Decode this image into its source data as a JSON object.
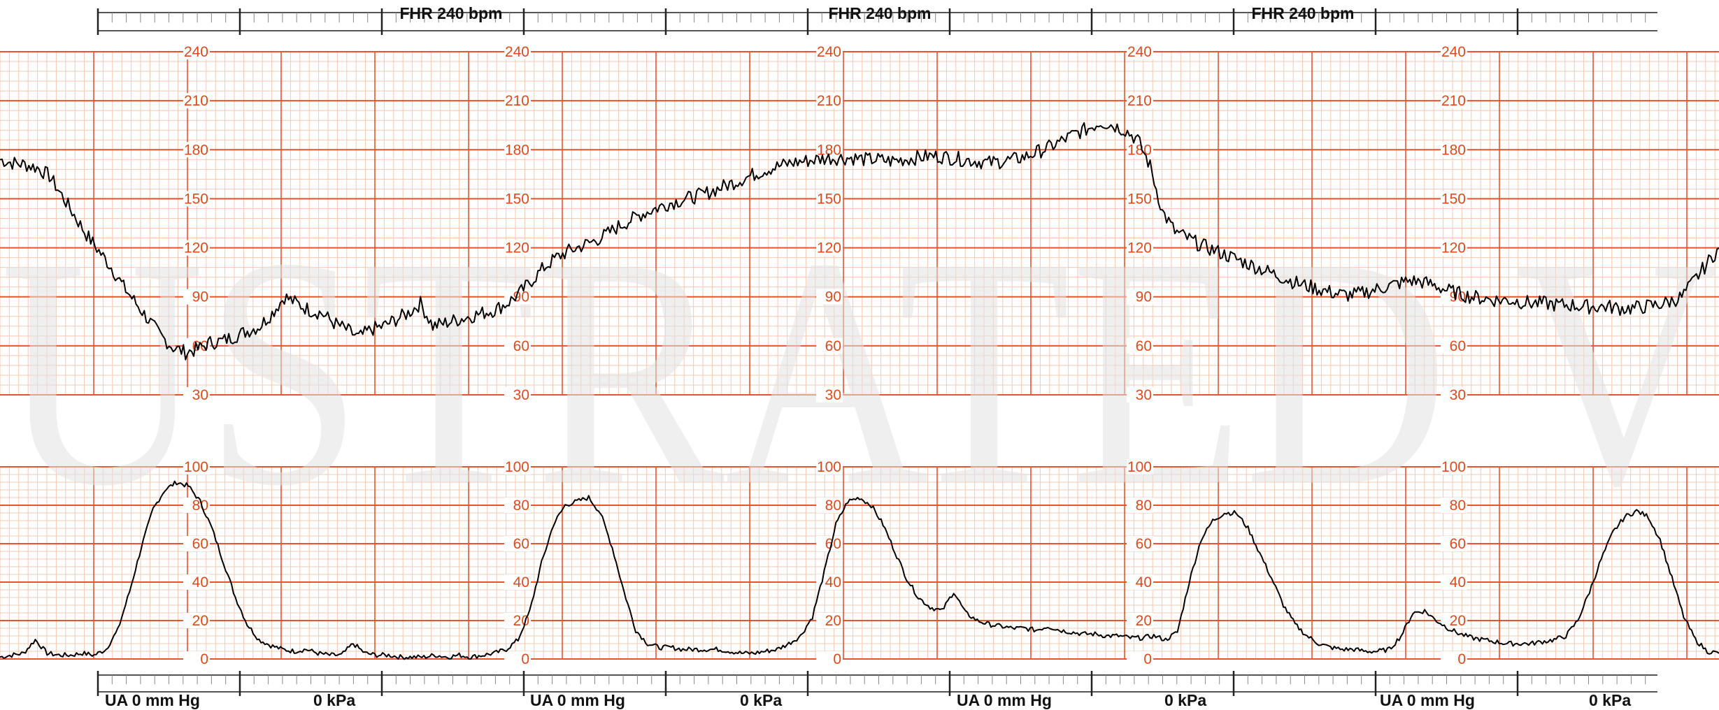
{
  "scale_labels": {
    "fhr_header": "FHR 240 bpm",
    "ua_left": "UA   0   mm Hg",
    "ua_right": "0 kPa"
  },
  "colors": {
    "grid_major": "#e8552a",
    "grid_minor": "#f6c8b2",
    "trace": "#000000",
    "watermark": "#e6e6e6"
  },
  "chart_data": [
    {
      "type": "line",
      "series": [
        {
          "values": [
            174,
            172,
            171,
            169,
            164,
            152,
            140,
            128,
            118,
            108,
            96,
            86,
            76,
            66,
            59,
            56,
            58,
            62,
            63,
            66,
            69,
            72,
            80,
            90,
            86,
            82,
            80,
            74,
            70,
            65,
            70,
            72,
            76,
            80,
            86,
            72,
            74,
            76,
            78,
            80,
            82,
            86,
            92,
            100,
            108,
            114,
            118,
            121,
            124,
            128,
            133,
            137,
            141,
            144,
            147,
            149,
            151,
            153,
            156,
            159,
            162,
            165,
            168,
            170,
            172,
            173,
            174,
            175,
            175,
            175,
            174,
            174,
            173,
            174,
            175,
            176,
            176,
            175,
            174,
            173,
            172,
            173,
            174,
            176,
            179,
            182,
            186,
            190,
            193,
            197,
            195,
            192,
            186,
            170,
            142,
            130,
            126,
            122,
            119,
            116,
            113,
            110,
            107,
            104,
            101,
            98,
            96,
            94,
            92,
            91,
            92,
            94,
            96,
            98,
            100,
            99,
            97,
            94,
            92,
            90,
            89,
            88,
            88,
            87,
            86,
            86,
            85,
            85,
            84,
            84,
            84,
            83,
            83,
            84,
            85,
            87,
            90,
            100,
            110,
            120
          ]
        }
      ],
      "ylim": [
        30,
        240
      ],
      "yticks": [
        30,
        60,
        90,
        120,
        150,
        180,
        210,
        240
      ]
    },
    {
      "type": "line",
      "series": [
        {
          "values": [
            1,
            2,
            3,
            10,
            3,
            2,
            2,
            3,
            2,
            5,
            15,
            35,
            58,
            78,
            88,
            92,
            90,
            82,
            68,
            50,
            32,
            18,
            10,
            7,
            5,
            4,
            5,
            3,
            2,
            2,
            8,
            3,
            2,
            2,
            1,
            1,
            1,
            2,
            1,
            2,
            1,
            2,
            3,
            5,
            10,
            25,
            50,
            70,
            80,
            82,
            84,
            76,
            58,
            35,
            15,
            8,
            6,
            6,
            5,
            5,
            5,
            5,
            4,
            3,
            3,
            4,
            5,
            8,
            12,
            22,
            45,
            70,
            82,
            84,
            80,
            70,
            56,
            42,
            32,
            27,
            25,
            35,
            24,
            20,
            18,
            17,
            16,
            16,
            15,
            17,
            15,
            14,
            13,
            13,
            12,
            12,
            11,
            11,
            12,
            10,
            14,
            40,
            62,
            72,
            76,
            76,
            68,
            55,
            42,
            28,
            18,
            12,
            8,
            6,
            5,
            5,
            4,
            4,
            5,
            12,
            24,
            25,
            20,
            16,
            13,
            11,
            10,
            9,
            8,
            8,
            8,
            9,
            10,
            12,
            20,
            35,
            52,
            66,
            74,
            77,
            74,
            62,
            42,
            22,
            10,
            4,
            3
          ]
        }
      ],
      "ylim": [
        0,
        100
      ],
      "yticks": [
        0,
        20,
        40,
        60,
        80,
        100
      ]
    }
  ]
}
